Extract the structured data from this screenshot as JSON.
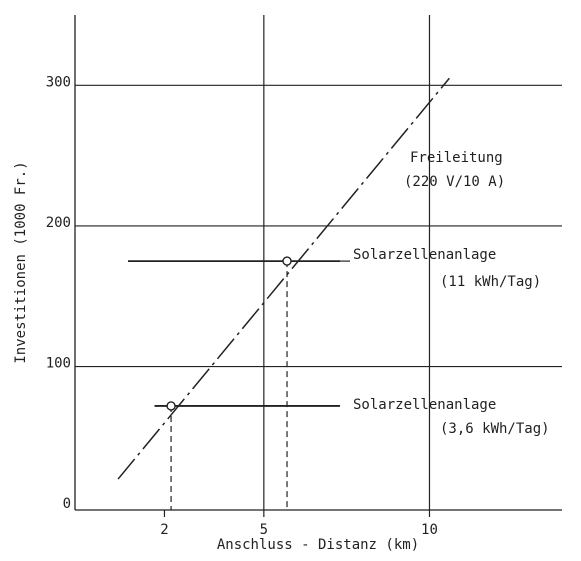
{
  "chart_data": {
    "type": "line",
    "title": "",
    "xlabel": "Anschluss - Distanz (km)",
    "ylabel": "Investitionen (1000 Fr.)",
    "xlim": [
      -0.7,
      14
    ],
    "ylim": [
      -2,
      350
    ],
    "x_ticks": [
      2,
      5,
      10
    ],
    "y_ticks": [
      0,
      100,
      200,
      300
    ],
    "x_gridlines": [
      5,
      10
    ],
    "y_gridlines": [
      100,
      200,
      300
    ],
    "grid": true,
    "colors": {
      "ink": "#222222",
      "background": "#ffffff"
    },
    "series": [
      {
        "name": "Freileitung",
        "name_line2": "(220 V/10 A)",
        "style": "dash-dot",
        "x": [
          0.6,
          10.6
        ],
        "y": [
          20,
          305
        ]
      },
      {
        "name": "Solarzellenanlage",
        "name_line2": "(11 kWh/Tag)",
        "style": "solid-horizontal",
        "x": [
          0.9,
          7.3
        ],
        "y": [
          175,
          175
        ],
        "intersection": {
          "x": 5.7,
          "y": 175
        }
      },
      {
        "name": "Solarzellenanlage",
        "name_line2": "(3,6 kWh/Tag)",
        "style": "solid-horizontal",
        "x": [
          1.7,
          7.3
        ],
        "y": [
          72,
          72
        ],
        "intersection": {
          "x": 2.2,
          "y": 72
        }
      }
    ]
  }
}
